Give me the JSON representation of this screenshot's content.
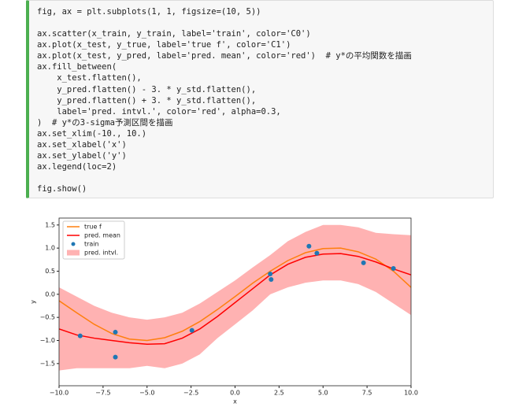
{
  "code": {
    "blocks": [
      [
        "fig, ax = plt.subplots(1, 1, figsize=(10, 5))"
      ],
      [
        "ax.scatter(x_train, y_train, label='train', color='C0')",
        "ax.plot(x_test, y_true, label='true f', color='C1')",
        "ax.plot(x_test, y_pred, label='pred. mean', color='red')  # y*の平均関数を描画",
        "ax.fill_between(",
        "    x_test.flatten(),",
        "    y_pred.flatten() - 3. * y_std.flatten(),",
        "    y_pred.flatten() + 3. * y_std.flatten(),",
        "    label='pred. intvl.', color='red', alpha=0.3,",
        ")  # y*の3-sigma予測区間を描画",
        "ax.set_xlim(-10., 10.)",
        "ax.set_xlabel('x')",
        "ax.set_ylabel('y')",
        "ax.legend(loc=2)"
      ],
      [
        "fig.show()"
      ]
    ]
  },
  "chart_data": {
    "type": "line",
    "xlabel": "x",
    "ylabel": "y",
    "legend": "upper left",
    "xlim": [
      -10,
      10
    ],
    "ylim": [
      -1.98,
      1.65
    ],
    "xticks": [
      {
        "value": -10,
        "label": "−10.0"
      },
      {
        "value": -7.5,
        "label": "−7.5"
      },
      {
        "value": -5,
        "label": "−5.0"
      },
      {
        "value": -2.5,
        "label": "−2.5"
      },
      {
        "value": 0,
        "label": "0.0"
      },
      {
        "value": 2.5,
        "label": "2.5"
      },
      {
        "value": 5,
        "label": "5.0"
      },
      {
        "value": 7.5,
        "label": "7.5"
      },
      {
        "value": 10,
        "label": "10.0"
      }
    ],
    "yticks": [
      {
        "value": -1.5,
        "label": "−1.5"
      },
      {
        "value": -1,
        "label": "−1.0"
      },
      {
        "value": -0.5,
        "label": "−0.5"
      },
      {
        "value": 0,
        "label": "0.0"
      },
      {
        "value": 0.5,
        "label": "0.5"
      },
      {
        "value": 1,
        "label": "1.0"
      },
      {
        "value": 1.5,
        "label": "1.5"
      }
    ],
    "x": [
      -10,
      -9,
      -8,
      -7,
      -6,
      -5,
      -4,
      -3,
      -2,
      -1,
      0,
      1,
      2,
      3,
      4,
      5,
      6,
      7,
      8,
      9,
      10
    ],
    "series": [
      {
        "name": "true f",
        "color": "#ff7f0e",
        "kind": "line",
        "values": [
          -0.14,
          -0.4,
          -0.65,
          -0.85,
          -0.97,
          -1.0,
          -0.94,
          -0.8,
          -0.59,
          -0.33,
          -0.05,
          0.24,
          0.5,
          0.73,
          0.9,
          0.99,
          1.0,
          0.92,
          0.76,
          0.5,
          0.15
        ]
      },
      {
        "name": "pred. mean",
        "color": "red",
        "kind": "line",
        "values": [
          -0.75,
          -0.88,
          -0.95,
          -1.0,
          -1.05,
          -1.08,
          -1.07,
          -0.95,
          -0.75,
          -0.48,
          -0.18,
          0.12,
          0.42,
          0.65,
          0.8,
          0.87,
          0.88,
          0.82,
          0.7,
          0.55,
          0.42
        ]
      },
      {
        "name": "train",
        "color": "#1f77b4",
        "kind": "scatter",
        "x": [
          -8.8,
          -6.8,
          -6.8,
          -2.45,
          2.0,
          2.05,
          4.2,
          4.65,
          7.3,
          9.0
        ],
        "values": [
          -0.9,
          -0.82,
          -1.36,
          -0.78,
          0.44,
          0.32,
          1.04,
          0.89,
          0.68,
          0.56
        ]
      },
      {
        "name": "pred. intvl.",
        "color": "red",
        "alpha": 0.3,
        "kind": "band",
        "upper": [
          0.15,
          -0.05,
          -0.25,
          -0.4,
          -0.5,
          -0.55,
          -0.5,
          -0.4,
          -0.2,
          0.05,
          0.3,
          0.58,
          0.85,
          1.15,
          1.35,
          1.5,
          1.5,
          1.45,
          1.33,
          1.3,
          1.28
        ],
        "lower": [
          -1.65,
          -1.6,
          -1.6,
          -1.6,
          -1.6,
          -1.55,
          -1.6,
          -1.5,
          -1.3,
          -0.95,
          -0.65,
          -0.35,
          0.0,
          0.15,
          0.25,
          0.3,
          0.3,
          0.22,
          0.05,
          -0.2,
          -0.45
        ]
      }
    ]
  }
}
